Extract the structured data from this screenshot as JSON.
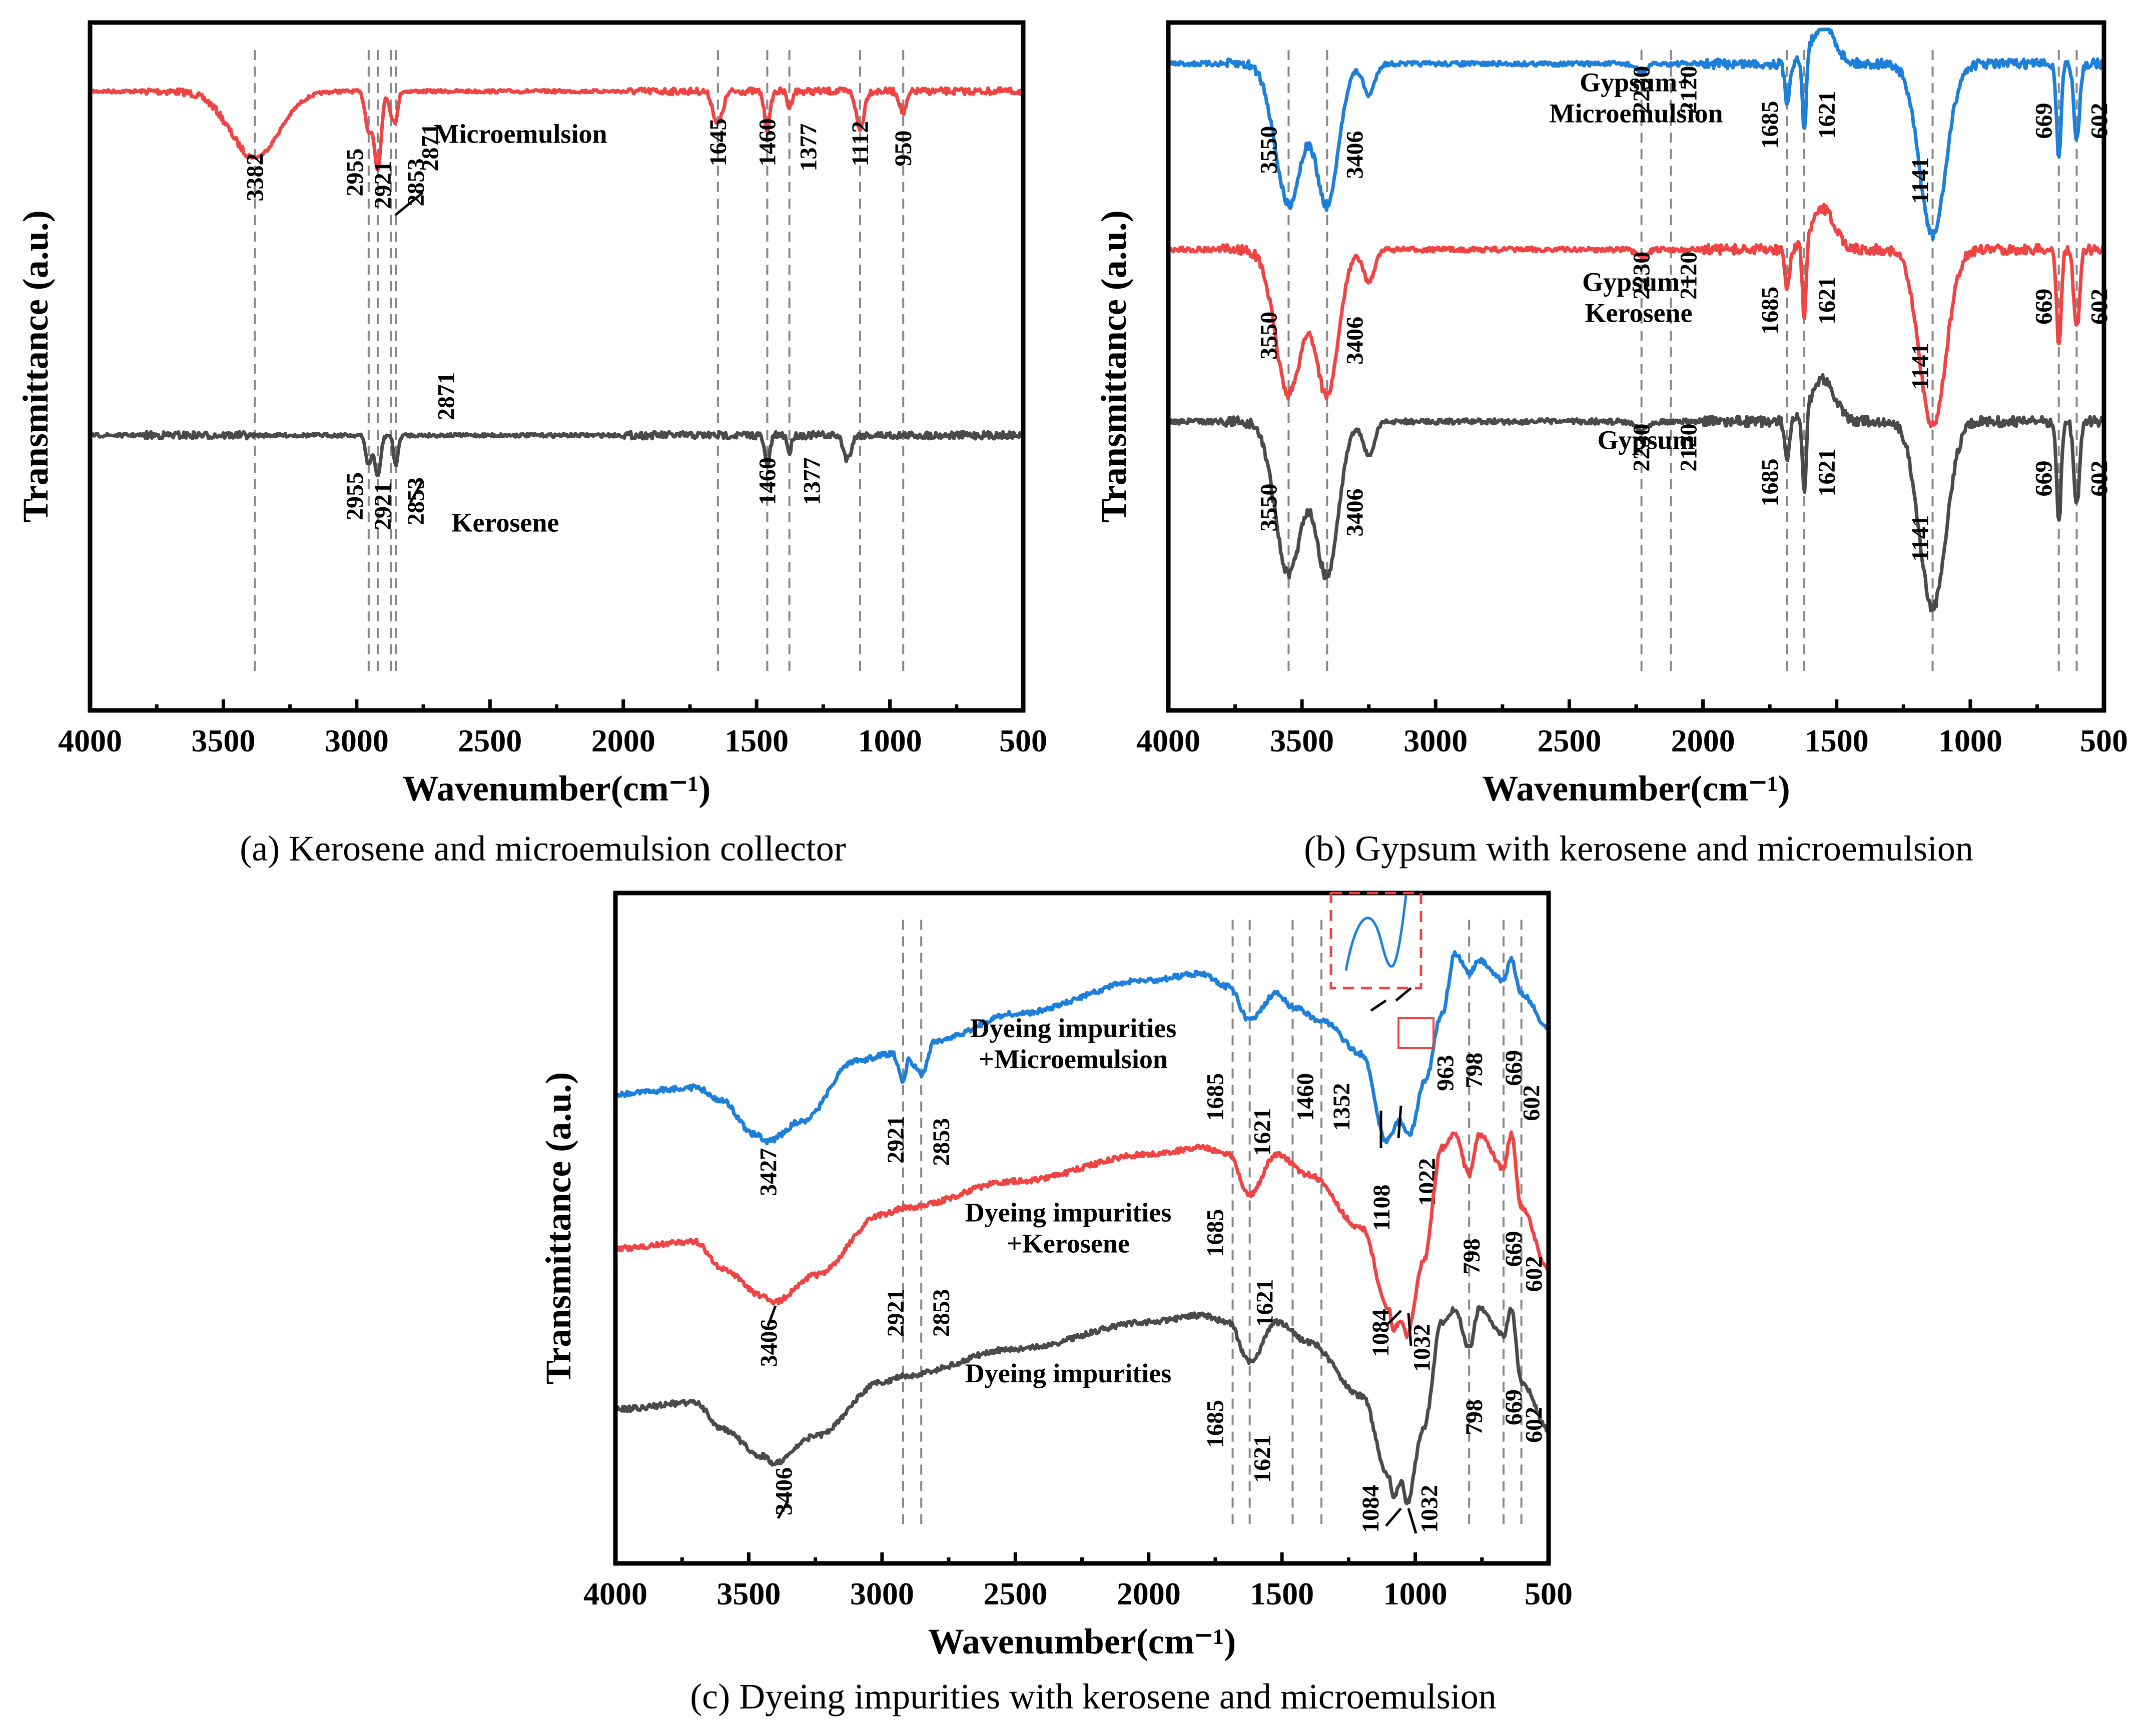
{
  "colors": {
    "red": "#ef4444",
    "blue": "#1e7fd9",
    "gray": "#4a4a4a"
  },
  "chart_data": [
    {
      "id": "a",
      "type": "line",
      "caption": "(a) Kerosene and microemulsion collector",
      "xlabel": "Wavenumber(cm⁻¹)",
      "ylabel": "Transmittance (a.u.)",
      "xlim": [
        4000,
        500
      ],
      "xticks": [
        "4000",
        "3500",
        "3000",
        "2500",
        "2000",
        "1500",
        "1000",
        "500"
      ],
      "ref_lines": [
        3382,
        2955,
        2921,
        2871,
        2853,
        1645,
        1460,
        1377,
        1112,
        950
      ],
      "series": [
        {
          "name": "Microemulsion",
          "color": "red",
          "baseline": 0.21,
          "dips": [
            [
              3382,
              0.12,
              130
            ],
            [
              2955,
              0.07,
              18
            ],
            [
              2921,
              0.14,
              18
            ],
            [
              2871,
              0.04,
              12
            ],
            [
              2853,
              0.05,
              12
            ],
            [
              1645,
              0.06,
              25
            ],
            [
              1460,
              0.07,
              15
            ],
            [
              1377,
              0.03,
              12
            ],
            [
              1112,
              0.07,
              20
            ],
            [
              950,
              0.04,
              18
            ]
          ],
          "peaks": [
            {
              "label": "3382",
              "x": 3382
            },
            {
              "label": "2955",
              "x": 2955
            },
            {
              "label": "2921",
              "x": 2921
            },
            {
              "label": "2853",
              "x": 2853
            },
            {
              "label": "2871",
              "x": 2871
            },
            {
              "label": "1645",
              "x": 1645
            },
            {
              "label": "1460",
              "x": 1460
            },
            {
              "label": "1377",
              "x": 1377
            },
            {
              "label": "1112",
              "x": 1112
            },
            {
              "label": "950",
              "x": 950
            }
          ]
        },
        {
          "name": "Kerosene",
          "color": "gray",
          "baseline": 0.7,
          "dips": [
            [
              2955,
              0.05,
              15
            ],
            [
              2921,
              0.07,
              15
            ],
            [
              2853,
              0.05,
              12
            ],
            [
              1460,
              0.05,
              14
            ],
            [
              1377,
              0.03,
              10
            ],
            [
              1160,
              0.04,
              20
            ]
          ],
          "peaks": [
            {
              "label": "2955",
              "x": 2955
            },
            {
              "label": "2921",
              "x": 2921
            },
            {
              "label": "2853",
              "x": 2853
            },
            {
              "label": "2871",
              "x": 2871
            },
            {
              "label": "1460",
              "x": 1460
            },
            {
              "label": "1377",
              "x": 1377
            }
          ]
        }
      ]
    },
    {
      "id": "b",
      "type": "line",
      "caption": "(b) Gypsum with kerosene and microemulsion",
      "xlabel": "Wavenumber(cm⁻¹)",
      "ylabel": "Transmittance (a.u.)",
      "xlim": [
        4000,
        500
      ],
      "xticks": [
        "4000",
        "3500",
        "3000",
        "2500",
        "2000",
        "1500",
        "1000",
        "500"
      ],
      "ref_lines": [
        3550,
        3406,
        2230,
        2120,
        1685,
        1621,
        1141,
        669,
        602
      ],
      "series": [
        {
          "name": "Gypsum+ Microemulsion",
          "name_lines": [
            "Gypsum+",
            "Microemulsion"
          ],
          "color": "blue",
          "baseline": 0.12,
          "dips": [
            [
              3550,
              0.18,
              70
            ],
            [
              3406,
              0.18,
              60
            ],
            [
              2230,
              0.01,
              30
            ],
            [
              1685,
              0.05,
              12
            ],
            [
              1621,
              0.1,
              10
            ],
            [
              1141,
              0.22,
              70
            ],
            [
              669,
              0.12,
              12
            ],
            [
              602,
              0.1,
              15
            ]
          ],
          "peaks": [
            {
              "label": "3550",
              "x": 3550
            },
            {
              "label": "3406",
              "x": 3406
            },
            {
              "label": "2230",
              "x": 2230
            },
            {
              "label": "2120",
              "x": 2120
            },
            {
              "label": "1685",
              "x": 1685
            },
            {
              "label": "1621",
              "x": 1621
            },
            {
              "label": "1141",
              "x": 1141
            },
            {
              "label": "669",
              "x": 669
            },
            {
              "label": "602",
              "x": 602
            }
          ]
        },
        {
          "name": "Gypsum+ Kerosene",
          "name_lines": [
            "Gypsum+",
            "Kerosene"
          ],
          "color": "red",
          "baseline": 0.42,
          "dips": [
            [
              3550,
              0.18,
              70
            ],
            [
              3406,
              0.18,
              60
            ],
            [
              2230,
              0.01,
              30
            ],
            [
              1685,
              0.05,
              12
            ],
            [
              1621,
              0.1,
              10
            ],
            [
              1141,
              0.22,
              70
            ],
            [
              669,
              0.12,
              12
            ],
            [
              602,
              0.1,
              15
            ]
          ],
          "peaks": [
            {
              "label": "3550",
              "x": 3550
            },
            {
              "label": "3406",
              "x": 3406
            },
            {
              "label": "2230",
              "x": 2230
            },
            {
              "label": "2120",
              "x": 2120
            },
            {
              "label": "1685",
              "x": 1685
            },
            {
              "label": "1621",
              "x": 1621
            },
            {
              "label": "1141",
              "x": 1141
            },
            {
              "label": "669",
              "x": 669
            },
            {
              "label": "602",
              "x": 602
            }
          ]
        },
        {
          "name": "Gypsum",
          "name_lines": [
            "Gypsum"
          ],
          "color": "gray",
          "baseline": 0.67,
          "dips": [
            [
              3550,
              0.18,
              70
            ],
            [
              3406,
              0.18,
              60
            ],
            [
              2230,
              0.01,
              30
            ],
            [
              1685,
              0.05,
              12
            ],
            [
              1621,
              0.1,
              10
            ],
            [
              1141,
              0.22,
              70
            ],
            [
              669,
              0.12,
              12
            ],
            [
              602,
              0.1,
              15
            ]
          ],
          "peaks": [
            {
              "label": "3550",
              "x": 3550
            },
            {
              "label": "3406",
              "x": 3406
            },
            {
              "label": "2230",
              "x": 2230
            },
            {
              "label": "2120",
              "x": 2120
            },
            {
              "label": "1685",
              "x": 1685
            },
            {
              "label": "1621",
              "x": 1621
            },
            {
              "label": "1141",
              "x": 1141
            },
            {
              "label": "669",
              "x": 669
            },
            {
              "label": "602",
              "x": 602
            }
          ]
        }
      ]
    },
    {
      "id": "c",
      "type": "line",
      "caption": "(c) Dyeing impurities with kerosene and microemulsion",
      "xlabel": "Wavenumber(cm⁻¹)",
      "ylabel": "Transmittance (a.u.)",
      "xlim": [
        4000,
        500
      ],
      "xticks": [
        "4000",
        "3500",
        "3000",
        "2500",
        "2000",
        "1500",
        "1000",
        "500"
      ],
      "ref_lines": [
        2921,
        2853,
        1685,
        1621,
        1460,
        1352,
        798,
        669,
        602
      ],
      "series": [
        {
          "name": "Dyeing impurities +Microemulsion",
          "name_lines": [
            "Dyeing impurities",
            "+Microemulsion"
          ],
          "color": "blue",
          "anchors": [
            [
              4000,
              0.3
            ],
            [
              3700,
              0.29
            ],
            [
              3600,
              0.31
            ],
            [
              3480,
              0.36
            ],
            [
              3427,
              0.37
            ],
            [
              3300,
              0.34
            ],
            [
              3100,
              0.25
            ],
            [
              2960,
              0.24
            ],
            [
              2921,
              0.28
            ],
            [
              2900,
              0.25
            ],
            [
              2853,
              0.27
            ],
            [
              2800,
              0.22
            ],
            [
              2500,
              0.18
            ],
            [
              2000,
              0.13
            ],
            [
              1800,
              0.12
            ],
            [
              1700,
              0.14
            ],
            [
              1621,
              0.19
            ],
            [
              1520,
              0.15
            ],
            [
              1460,
              0.17
            ],
            [
              1352,
              0.19
            ],
            [
              1200,
              0.24
            ],
            [
              1108,
              0.37
            ],
            [
              1060,
              0.34
            ],
            [
              1022,
              0.36
            ],
            [
              963,
              0.28
            ],
            [
              900,
              0.18
            ],
            [
              850,
              0.09
            ],
            [
              798,
              0.12
            ],
            [
              760,
              0.1
            ],
            [
              669,
              0.13
            ],
            [
              640,
              0.1
            ],
            [
              602,
              0.15
            ],
            [
              500,
              0.2
            ]
          ],
          "peaks": [
            {
              "label": "3427",
              "x": 3427
            },
            {
              "label": "2921",
              "x": 2921
            },
            {
              "label": "2853",
              "x": 2853
            },
            {
              "label": "1685",
              "x": 1685
            },
            {
              "label": "1621",
              "x": 1621
            },
            {
              "label": "1460",
              "x": 1460
            },
            {
              "label": "1352",
              "x": 1352
            },
            {
              "label": "963",
              "x": 963
            },
            {
              "label": "1108",
              "x": 1108
            },
            {
              "label": "1022",
              "x": 1022
            },
            {
              "label": "798",
              "x": 798
            },
            {
              "label": "669",
              "x": 669
            },
            {
              "label": "602",
              "x": 602
            }
          ]
        },
        {
          "name": "Dyeing impurities +Kerosene",
          "name_lines": [
            "Dyeing impurities",
            "+Kerosene"
          ],
          "color": "red",
          "anchors": [
            [
              4000,
              0.53
            ],
            [
              3700,
              0.52
            ],
            [
              3600,
              0.56
            ],
            [
              3450,
              0.6
            ],
            [
              3406,
              0.61
            ],
            [
              3250,
              0.57
            ],
            [
              3000,
              0.48
            ],
            [
              2921,
              0.47
            ],
            [
              2500,
              0.43
            ],
            [
              2000,
              0.39
            ],
            [
              1800,
              0.38
            ],
            [
              1700,
              0.39
            ],
            [
              1621,
              0.45
            ],
            [
              1520,
              0.39
            ],
            [
              1400,
              0.42
            ],
            [
              1200,
              0.5
            ],
            [
              1100,
              0.62
            ],
            [
              1084,
              0.65
            ],
            [
              1050,
              0.64
            ],
            [
              1032,
              0.66
            ],
            [
              970,
              0.55
            ],
            [
              900,
              0.38
            ],
            [
              850,
              0.36
            ],
            [
              798,
              0.42
            ],
            [
              760,
              0.36
            ],
            [
              669,
              0.41
            ],
            [
              640,
              0.36
            ],
            [
              602,
              0.47
            ],
            [
              500,
              0.56
            ]
          ],
          "peaks": [
            {
              "label": "3406",
              "x": 3406
            },
            {
              "label": "2921",
              "x": 2921
            },
            {
              "label": "2853",
              "x": 2853
            },
            {
              "label": "1685",
              "x": 1685
            },
            {
              "label": "1621",
              "x": 1621
            },
            {
              "label": "1084",
              "x": 1084
            },
            {
              "label": "1032",
              "x": 1032
            },
            {
              "label": "798",
              "x": 798
            },
            {
              "label": "669",
              "x": 669
            },
            {
              "label": "602",
              "x": 602
            }
          ]
        },
        {
          "name": "Dyeing impurities",
          "name_lines": [
            "Dyeing impurities"
          ],
          "color": "gray",
          "anchors": [
            [
              4000,
              0.77
            ],
            [
              3700,
              0.76
            ],
            [
              3600,
              0.8
            ],
            [
              3450,
              0.84
            ],
            [
              3406,
              0.85
            ],
            [
              3250,
              0.81
            ],
            [
              3000,
              0.73
            ],
            [
              2921,
              0.72
            ],
            [
              2500,
              0.68
            ],
            [
              2000,
              0.64
            ],
            [
              1800,
              0.63
            ],
            [
              1700,
              0.64
            ],
            [
              1621,
              0.7
            ],
            [
              1520,
              0.64
            ],
            [
              1400,
              0.67
            ],
            [
              1200,
              0.75
            ],
            [
              1100,
              0.87
            ],
            [
              1084,
              0.9
            ],
            [
              1050,
              0.88
            ],
            [
              1032,
              0.91
            ],
            [
              970,
              0.8
            ],
            [
              900,
              0.64
            ],
            [
              850,
              0.62
            ],
            [
              798,
              0.68
            ],
            [
              760,
              0.62
            ],
            [
              669,
              0.66
            ],
            [
              640,
              0.62
            ],
            [
              602,
              0.73
            ],
            [
              500,
              0.8
            ]
          ],
          "peaks": [
            {
              "label": "3406",
              "x": 3406
            },
            {
              "label": "1685",
              "x": 1685
            },
            {
              "label": "1621",
              "x": 1621
            },
            {
              "label": "1084",
              "x": 1084
            },
            {
              "label": "1032",
              "x": 1032
            },
            {
              "label": "798",
              "x": 798
            },
            {
              "label": "669",
              "x": 669
            },
            {
              "label": "602",
              "x": 602
            }
          ]
        }
      ]
    }
  ]
}
